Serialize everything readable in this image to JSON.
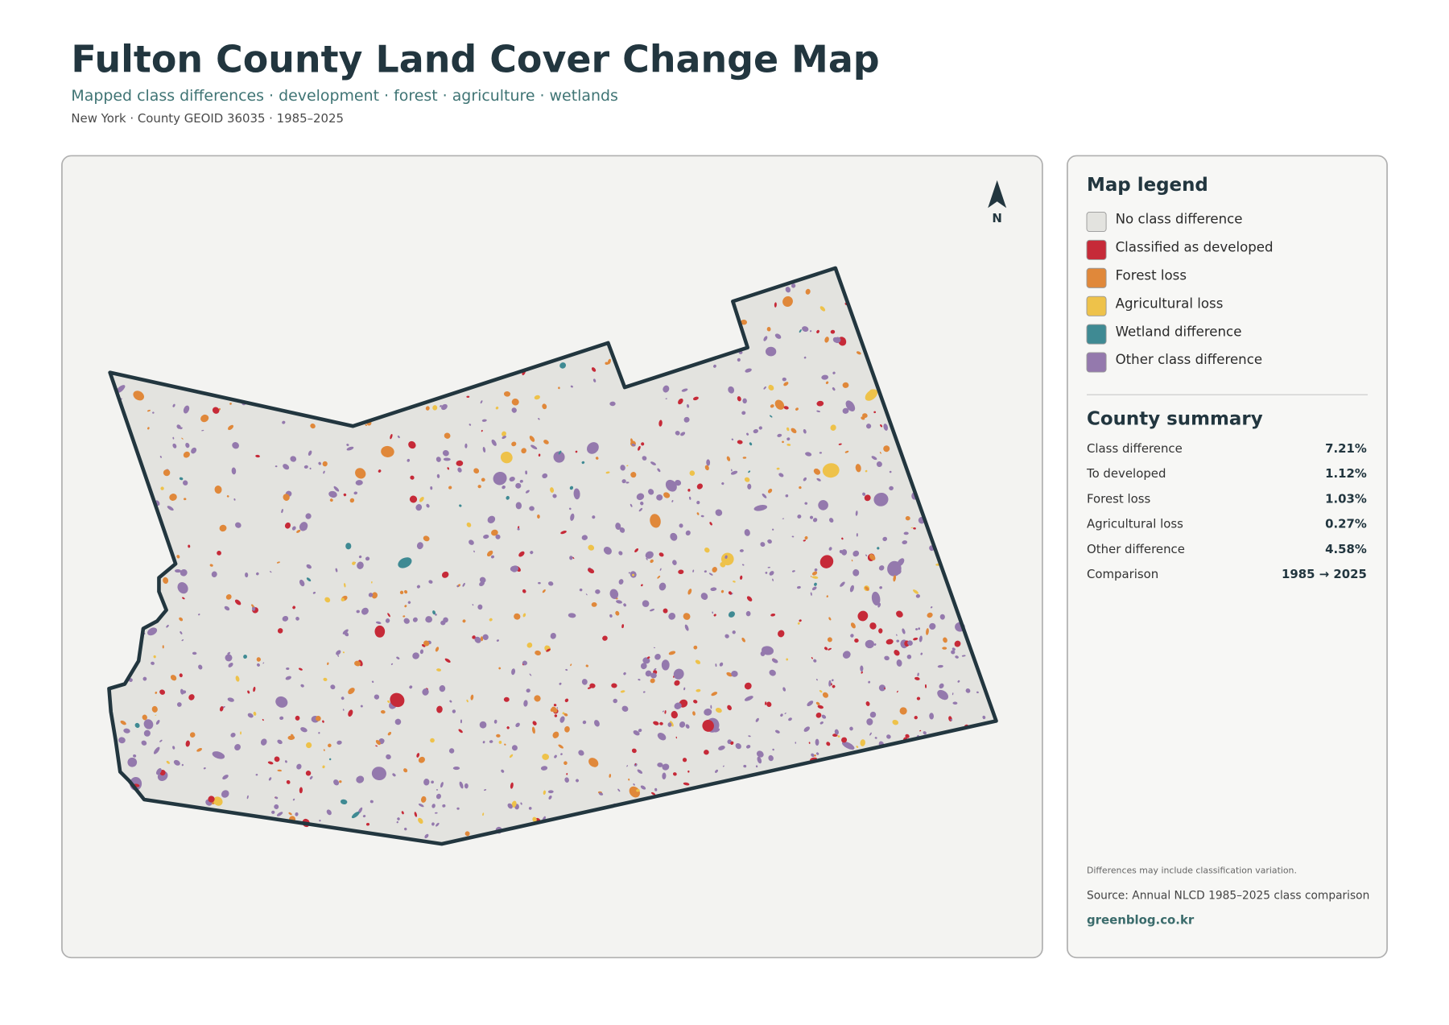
{
  "header": {
    "title": "Fulton County Land Cover Change Map",
    "subtitle": "Mapped class differences · development · forest · agriculture · wetlands",
    "meta": "New York · County GEOID 36035 · 1985–2025"
  },
  "map": {
    "north_label": "N"
  },
  "legend": {
    "title": "Map legend",
    "items": [
      {
        "label": "No class difference",
        "color": "#e3e3df"
      },
      {
        "label": "Classified as developed",
        "color": "#c62a38"
      },
      {
        "label": "Forest loss",
        "color": "#e0883a"
      },
      {
        "label": "Agricultural loss",
        "color": "#eec24a"
      },
      {
        "label": "Wetland difference",
        "color": "#3f8a93"
      },
      {
        "label": "Other class difference",
        "color": "#9479ad"
      }
    ]
  },
  "summary": {
    "title": "County summary",
    "rows": [
      [
        "Class difference",
        "7.21%"
      ],
      [
        "To developed",
        "1.12%"
      ],
      [
        "Forest loss",
        "1.03%"
      ],
      [
        "Agricultural loss",
        "0.27%"
      ],
      [
        "Other difference",
        "4.58%"
      ],
      [
        "Comparison",
        "1985 → 2025"
      ]
    ]
  },
  "notes": {
    "caveat": "Differences may include classification variation.",
    "source": "Source: Annual NLCD 1985–2025 class comparison",
    "credit": "greenblog.co.kr"
  }
}
